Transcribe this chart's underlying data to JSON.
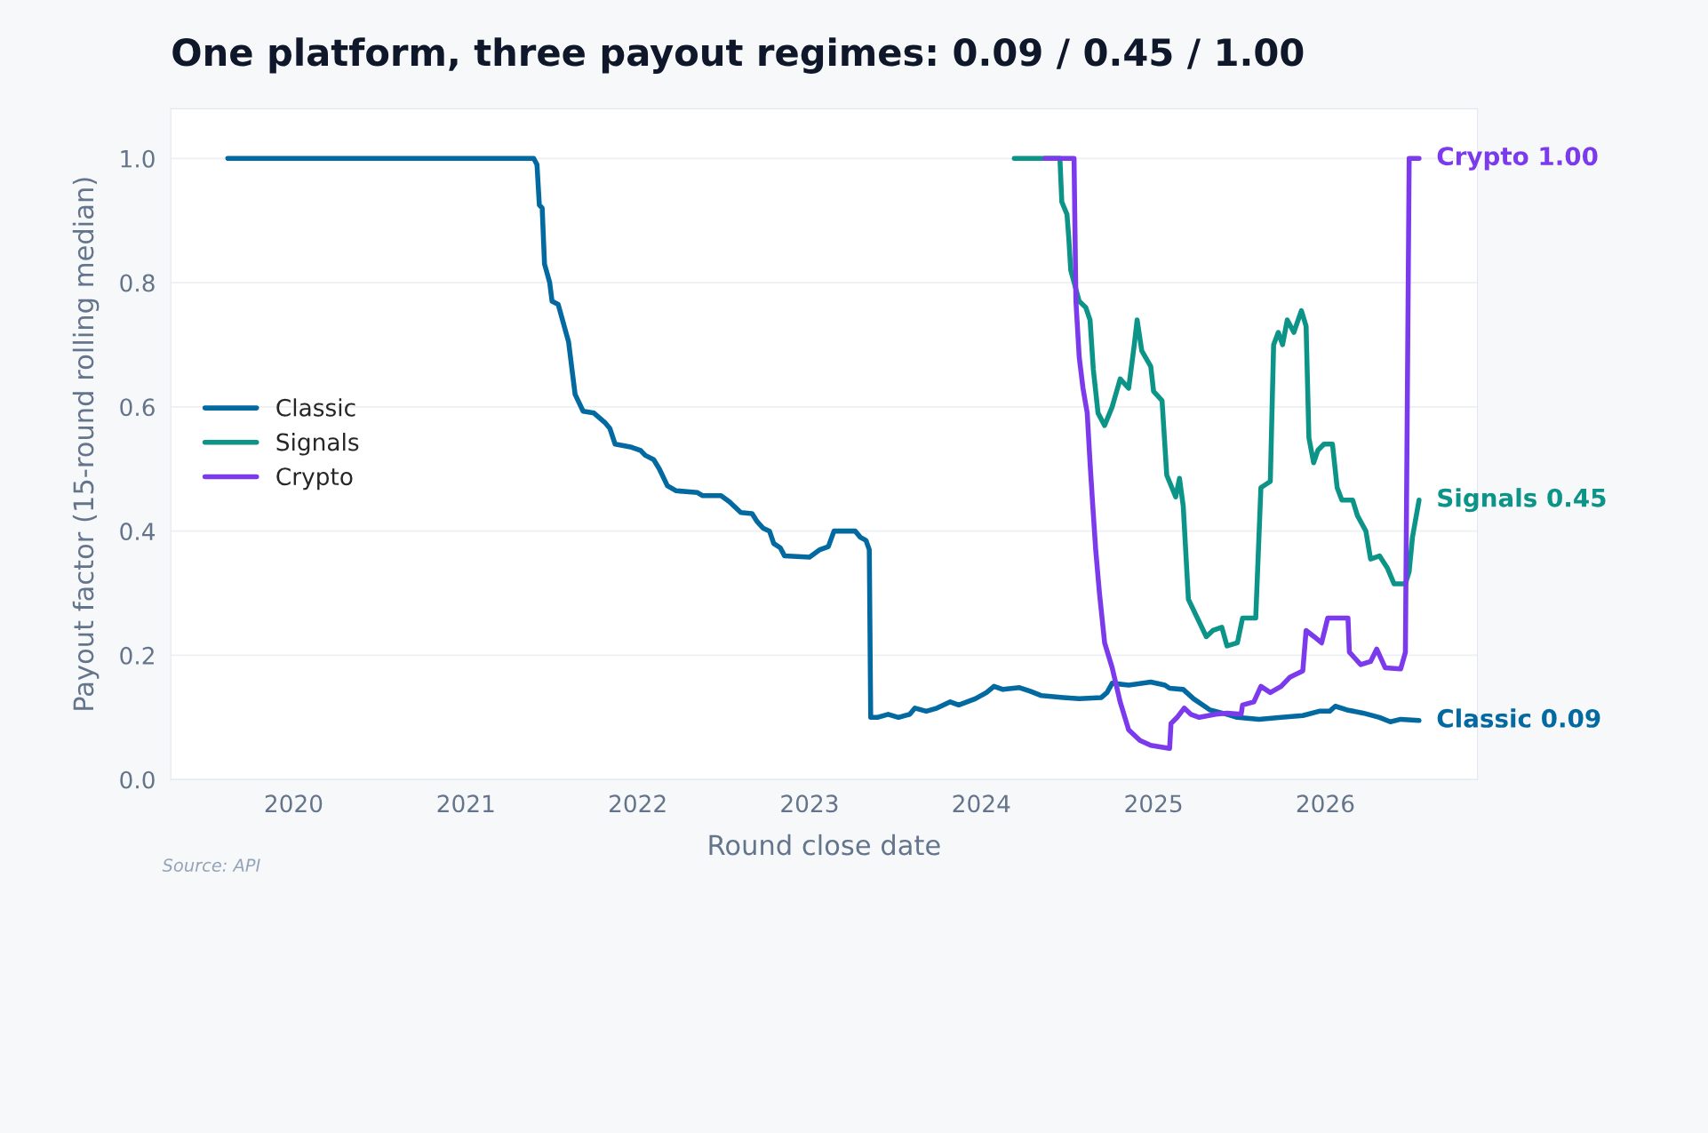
{
  "chart_data": {
    "type": "line",
    "title": "One platform, three payout regimes: 0.09 / 0.45 / 1.00",
    "xlabel": "Round close date",
    "ylabel": "Payout factor (15-round rolling median)",
    "xlim": [
      "2019-04-15",
      "2026-11-20"
    ],
    "xticks": [
      {
        "value": "2020-01-01",
        "label": "2020"
      },
      {
        "value": "2021-01-01",
        "label": "2021"
      },
      {
        "value": "2022-01-01",
        "label": "2022"
      },
      {
        "value": "2023-01-01",
        "label": "2023"
      },
      {
        "value": "2024-01-01",
        "label": "2024"
      },
      {
        "value": "2025-01-01",
        "label": "2025"
      },
      {
        "value": "2026-01-01",
        "label": "2026"
      }
    ],
    "ylim": [
      0,
      1.08
    ],
    "yticks": [
      {
        "value": 0,
        "label": "0.0"
      },
      {
        "value": 0.2,
        "label": "0.2"
      },
      {
        "value": 0.4,
        "label": "0.4"
      },
      {
        "value": 0.6,
        "label": "0.6"
      },
      {
        "value": 0.8,
        "label": "0.8"
      },
      {
        "value": 1,
        "label": "1.0"
      }
    ],
    "grid": "y",
    "legend": "left",
    "line_style": "solid",
    "series": [
      {
        "name": "Classic",
        "color": "#0369a1",
        "x": [
          "2019-08-14",
          "2021-05-25",
          "2021-06-01",
          "2021-06-06",
          "2021-06-12",
          "2021-06-17",
          "2021-06-28",
          "2021-07-03",
          "2021-07-16",
          "2021-08-07",
          "2021-08-21",
          "2021-09-07",
          "2021-09-30",
          "2021-10-23",
          "2021-11-03",
          "2021-11-14",
          "2021-12-19",
          "2022-01-07",
          "2022-01-17",
          "2022-02-04",
          "2022-02-16",
          "2022-03-05",
          "2022-03-23",
          "2022-05-08",
          "2022-05-19",
          "2022-06-27",
          "2022-07-15",
          "2022-08-08",
          "2022-09-01",
          "2022-09-12",
          "2022-09-24",
          "2022-10-08",
          "2022-10-17",
          "2022-10-31",
          "2022-11-09",
          "2023-01-01",
          "2023-01-23",
          "2023-02-10",
          "2023-02-22",
          "2023-04-08",
          "2023-04-19",
          "2023-05-01",
          "2023-05-08",
          "2023-05-11",
          "2023-05-25",
          "2023-06-17",
          "2023-07-09",
          "2023-08-02",
          "2023-08-13",
          "2023-09-06",
          "2023-09-29",
          "2023-10-27",
          "2023-11-14",
          "2023-12-19",
          "2024-01-12",
          "2024-01-28",
          "2024-02-16",
          "2024-03-22",
          "2024-04-14",
          "2024-05-08",
          "2024-06-23",
          "2024-07-27",
          "2024-09-12",
          "2024-09-24",
          "2024-10-05",
          "2024-11-09",
          "2024-12-26",
          "2025-01-25",
          "2025-02-04",
          "2025-03-05",
          "2025-03-27",
          "2025-05-01",
          "2025-06-06",
          "2025-06-28",
          "2025-08-13",
          "2025-09-29",
          "2025-11-14",
          "2025-12-19",
          "2026-01-10",
          "2026-01-22",
          "2026-02-16",
          "2026-03-22",
          "2026-04-26",
          "2026-05-19",
          "2026-06-10",
          "2026-07-19"
        ],
        "values": [
          1.0,
          1.0,
          0.99,
          0.925,
          0.92,
          0.83,
          0.8,
          0.77,
          0.765,
          0.705,
          0.62,
          0.593,
          0.59,
          0.575,
          0.565,
          0.54,
          0.535,
          0.53,
          0.522,
          0.515,
          0.5,
          0.473,
          0.465,
          0.462,
          0.457,
          0.457,
          0.447,
          0.43,
          0.428,
          0.415,
          0.405,
          0.4,
          0.38,
          0.373,
          0.36,
          0.358,
          0.37,
          0.375,
          0.4,
          0.4,
          0.39,
          0.385,
          0.37,
          0.1,
          0.1,
          0.105,
          0.1,
          0.105,
          0.115,
          0.11,
          0.115,
          0.125,
          0.12,
          0.13,
          0.14,
          0.15,
          0.145,
          0.148,
          0.142,
          0.135,
          0.132,
          0.13,
          0.132,
          0.14,
          0.155,
          0.152,
          0.157,
          0.152,
          0.147,
          0.145,
          0.13,
          0.112,
          0.105,
          0.1,
          0.097,
          0.1,
          0.103,
          0.11,
          0.11,
          0.118,
          0.112,
          0.107,
          0.1,
          0.093,
          0.097,
          0.095
        ]
      },
      {
        "name": "Signals",
        "color": "#0d9488",
        "x": [
          "2024-03-11",
          "2024-06-16",
          "2024-06-20",
          "2024-07-01",
          "2024-07-05",
          "2024-07-09",
          "2024-07-27",
          "2024-08-10",
          "2024-08-19",
          "2024-08-26",
          "2024-09-05",
          "2024-09-19",
          "2024-10-05",
          "2024-10-22",
          "2024-11-09",
          "2024-11-21",
          "2024-11-27",
          "2024-12-07",
          "2024-12-26",
          "2025-01-01",
          "2025-01-19",
          "2025-01-29",
          "2025-02-17",
          "2025-02-25",
          "2025-03-05",
          "2025-03-16",
          "2025-04-04",
          "2025-04-23",
          "2025-05-07",
          "2025-05-26",
          "2025-06-06",
          "2025-06-28",
          "2025-07-09",
          "2025-08-06",
          "2025-08-17",
          "2025-09-06",
          "2025-09-13",
          "2025-09-23",
          "2025-10-02",
          "2025-10-12",
          "2025-10-26",
          "2025-11-11",
          "2025-11-21",
          "2025-11-27",
          "2025-12-07",
          "2025-12-16",
          "2025-12-29",
          "2026-01-16",
          "2026-01-26",
          "2026-02-05",
          "2026-02-28",
          "2026-03-10",
          "2026-03-28",
          "2026-04-07",
          "2026-04-26",
          "2026-05-13",
          "2026-05-27",
          "2026-06-20",
          "2026-06-28",
          "2026-07-05",
          "2026-07-19"
        ],
        "values": [
          1.0,
          1.0,
          0.93,
          0.91,
          0.87,
          0.82,
          0.77,
          0.76,
          0.74,
          0.66,
          0.59,
          0.57,
          0.6,
          0.645,
          0.63,
          0.7,
          0.74,
          0.69,
          0.665,
          0.625,
          0.61,
          0.49,
          0.455,
          0.485,
          0.44,
          0.29,
          0.26,
          0.23,
          0.24,
          0.245,
          0.215,
          0.22,
          0.26,
          0.26,
          0.47,
          0.48,
          0.7,
          0.72,
          0.7,
          0.74,
          0.72,
          0.755,
          0.73,
          0.55,
          0.51,
          0.53,
          0.54,
          0.54,
          0.47,
          0.45,
          0.45,
          0.425,
          0.4,
          0.355,
          0.36,
          0.34,
          0.315,
          0.315,
          0.335,
          0.39,
          0.45
        ]
      },
      {
        "name": "Crypto",
        "color": "#7c3aed",
        "x": [
          "2024-05-15",
          "2024-07-16",
          "2024-07-20",
          "2024-07-27",
          "2024-08-04",
          "2024-08-13",
          "2024-08-19",
          "2024-08-24",
          "2024-08-31",
          "2024-09-08",
          "2024-09-19",
          "2024-10-05",
          "2024-10-22",
          "2024-11-09",
          "2024-12-03",
          "2024-12-26",
          "2025-02-04",
          "2025-02-07",
          "2025-02-20",
          "2025-03-07",
          "2025-03-21",
          "2025-04-08",
          "2025-05-13",
          "2025-06-06",
          "2025-07-06",
          "2025-07-09",
          "2025-08-02",
          "2025-08-17",
          "2025-09-06",
          "2025-09-29",
          "2025-10-18",
          "2025-11-14",
          "2025-11-21",
          "2025-12-08",
          "2025-12-24",
          "2026-01-06",
          "2026-01-30",
          "2026-02-18",
          "2026-02-21",
          "2026-03-17",
          "2026-04-07",
          "2026-04-20",
          "2026-05-08",
          "2026-06-10",
          "2026-06-20",
          "2026-06-28",
          "2026-07-19"
        ],
        "values": [
          1.0,
          1.0,
          0.77,
          0.68,
          0.63,
          0.59,
          0.51,
          0.45,
          0.37,
          0.3,
          0.22,
          0.18,
          0.125,
          0.08,
          0.063,
          0.055,
          0.05,
          0.09,
          0.1,
          0.115,
          0.105,
          0.1,
          0.105,
          0.107,
          0.105,
          0.12,
          0.125,
          0.15,
          0.14,
          0.15,
          0.165,
          0.175,
          0.24,
          0.23,
          0.22,
          0.26,
          0.26,
          0.26,
          0.205,
          0.185,
          0.19,
          0.21,
          0.18,
          0.178,
          0.205,
          1.0,
          1.0
        ]
      }
    ],
    "annotations": [
      {
        "text": "Classic 0.09",
        "x": "2026-07-19",
        "y": 0.095
      },
      {
        "text": "Signals 0.45",
        "x": "2026-07-19",
        "y": 0.45
      },
      {
        "text": "Crypto 1.00",
        "x": "2026-07-19",
        "y": 1.0
      },
      "Source: API"
    ]
  }
}
